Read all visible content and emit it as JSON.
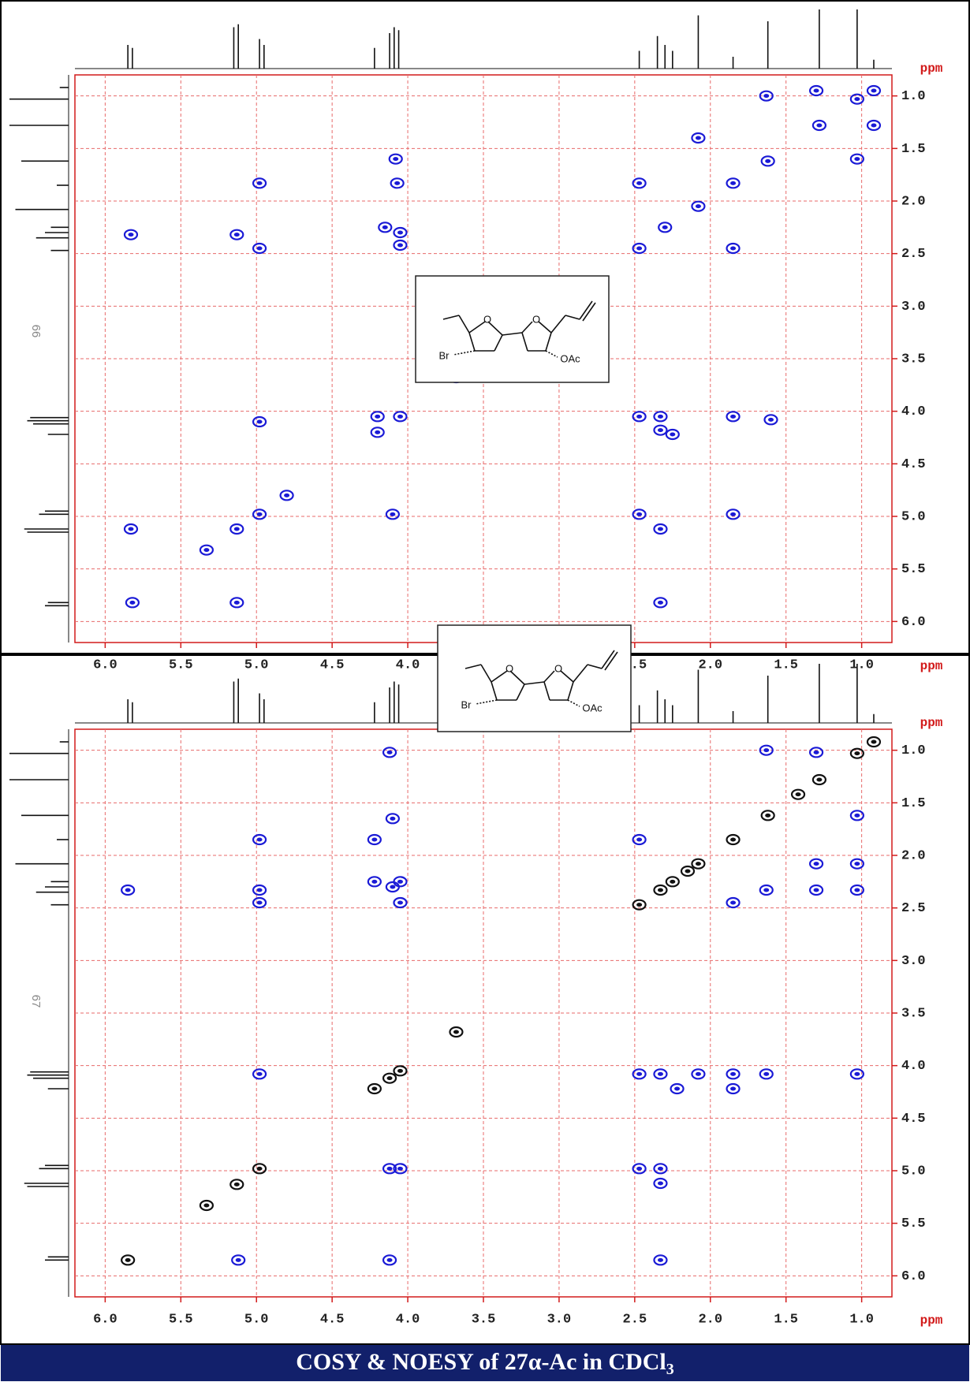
{
  "chart_data": [
    {
      "type": "scatter",
      "page_label": "66",
      "xlabel": "ppm",
      "ylabel": "ppm",
      "xlim": [
        6.2,
        0.8
      ],
      "ylim": [
        0.8,
        6.2
      ],
      "grid": true,
      "xticks": [
        {
          "value": 6,
          "label": "6.0"
        },
        5.5,
        {
          "value": 5,
          "label": "5.0"
        },
        4.5,
        {
          "value": 4,
          "label": "4.0"
        },
        3.5,
        {
          "value": 3,
          "label": "3.0"
        },
        2.5,
        {
          "value": 2,
          "label": "2.0"
        },
        1.5,
        {
          "value": 1,
          "label": "1.0"
        }
      ],
      "yticks": [
        {
          "value": 1,
          "label": "1.0"
        },
        1.5,
        {
          "value": 2,
          "label": "2.0"
        },
        2.5,
        {
          "value": 3,
          "label": "3.0"
        },
        3.5,
        {
          "value": 4,
          "label": "4.0"
        },
        4.5,
        {
          "value": 5,
          "label": "5.0"
        },
        5.5,
        {
          "value": 6,
          "label": "6.0"
        }
      ],
      "structure_labels": [
        "O",
        "O",
        "Br",
        "OAc"
      ],
      "projection": {
        "x": [
          5.85,
          5.82,
          5.15,
          5.12,
          4.98,
          4.95,
          4.22,
          4.12,
          4.09,
          4.06,
          2.47,
          2.35,
          2.3,
          2.25,
          2.08,
          1.85,
          1.62,
          1.28,
          1.03,
          0.92
        ],
        "values": [
          0.4,
          0.35,
          0.7,
          0.75,
          0.5,
          0.4,
          0.35,
          0.6,
          0.7,
          0.65,
          0.3,
          0.55,
          0.4,
          0.3,
          0.9,
          0.2,
          0.8,
          1.0,
          1.0,
          0.15
        ],
        "ylim": [
          0,
          1
        ]
      },
      "series": [
        {
          "color": "#1a1ad6",
          "x": [
            5.82,
            5.33,
            5.13,
            4.98,
            4.8,
            2.3,
            2.08,
            1.62,
            1.28,
            1.03,
            0.92,
            5.83,
            5.83,
            5.13,
            5.13,
            4.98,
            4.98,
            4.98,
            4.08,
            4.07,
            4.15,
            4.05,
            4.05,
            4.2,
            4.05,
            4.2,
            4.1,
            2.47,
            2.47,
            2.47,
            2.47,
            2.33,
            2.33,
            2.25,
            2.33,
            2.33,
            1.85,
            1.85,
            1.85,
            1.85,
            1.63,
            1.6,
            1.3,
            1.03,
            0.92,
            2.08,
            3.68
          ],
          "values": [
            5.82,
            5.32,
            5.12,
            4.98,
            4.8,
            2.25,
            2.05,
            1.62,
            1.28,
            1.03,
            0.95,
            2.32,
            5.12,
            2.32,
            5.82,
            1.83,
            2.45,
            4.1,
            1.6,
            1.83,
            2.25,
            2.3,
            2.42,
            4.2,
            4.05,
            4.05,
            4.98,
            1.83,
            2.45,
            4.05,
            4.98,
            4.05,
            4.18,
            4.22,
            5.12,
            5.82,
            1.83,
            2.45,
            4.05,
            4.98,
            1.0,
            4.08,
            0.95,
            1.6,
            1.28,
            1.4,
            3.68
          ]
        }
      ]
    },
    {
      "type": "scatter",
      "page_label": "67",
      "xlabel": "ppm",
      "ylabel": "ppm",
      "xlim": [
        6.2,
        0.8
      ],
      "ylim": [
        0.8,
        6.2
      ],
      "grid": true,
      "xticks": [
        {
          "value": 6,
          "label": "6.0"
        },
        5.5,
        {
          "value": 5,
          "label": "5.0"
        },
        4.5,
        {
          "value": 4,
          "label": "4.0"
        },
        3.5,
        {
          "value": 3,
          "label": "3.0"
        },
        2.5,
        {
          "value": 2,
          "label": "2.0"
        },
        1.5,
        {
          "value": 1,
          "label": "1.0"
        }
      ],
      "yticks": [
        {
          "value": 1,
          "label": "1.0"
        },
        1.5,
        {
          "value": 2,
          "label": "2.0"
        },
        2.5,
        {
          "value": 3,
          "label": "3.0"
        },
        3.5,
        {
          "value": 4,
          "label": "4.0"
        },
        4.5,
        {
          "value": 5,
          "label": "5.0"
        },
        5.5,
        {
          "value": 6,
          "label": "6.0"
        }
      ],
      "structure_labels": [
        "O",
        "O",
        "Br",
        "OAc"
      ],
      "projection": {
        "x": [
          5.85,
          5.82,
          5.15,
          5.12,
          4.98,
          4.95,
          4.22,
          4.12,
          4.09,
          4.06,
          2.47,
          2.35,
          2.3,
          2.25,
          2.08,
          1.85,
          1.62,
          1.28,
          1.03,
          0.92
        ],
        "values": [
          0.4,
          0.35,
          0.7,
          0.75,
          0.5,
          0.4,
          0.35,
          0.6,
          0.7,
          0.65,
          0.3,
          0.55,
          0.4,
          0.3,
          0.9,
          0.2,
          0.8,
          1.0,
          1.0,
          0.15
        ],
        "ylim": [
          0,
          1
        ]
      },
      "series": [
        {
          "color": "#1a1ad6",
          "x": [
            5.85,
            5.12,
            4.98,
            4.98,
            4.98,
            4.98,
            4.12,
            4.1,
            4.22,
            4.22,
            4.1,
            4.05,
            4.05,
            4.12,
            4.05,
            4.12,
            2.47,
            2.47,
            2.47,
            2.33,
            2.33,
            2.33,
            2.33,
            2.22,
            2.08,
            1.85,
            1.85,
            1.85,
            1.63,
            1.63,
            1.3,
            1.3,
            1.03,
            1.03,
            1.03,
            1.03,
            1.63,
            1.3
          ],
          "values": [
            2.33,
            5.85,
            1.85,
            2.33,
            2.45,
            4.08,
            1.02,
            1.65,
            1.85,
            2.25,
            2.3,
            2.25,
            2.45,
            4.98,
            4.98,
            5.85,
            1.85,
            4.08,
            4.98,
            4.08,
            4.98,
            5.12,
            5.85,
            4.22,
            4.08,
            2.45,
            4.08,
            4.22,
            4.08,
            2.33,
            2.08,
            2.33,
            2.08,
            2.33,
            1.62,
            4.08,
            1.0,
            1.02
          ]
        },
        {
          "color": "#111111",
          "x": [
            5.85,
            5.33,
            5.13,
            4.98,
            4.22,
            4.12,
            4.05,
            3.68,
            2.47,
            2.33,
            2.25,
            2.15,
            2.08,
            1.85,
            1.62,
            1.42,
            1.28,
            1.03,
            0.92
          ],
          "values": [
            5.85,
            5.33,
            5.13,
            4.98,
            4.22,
            4.12,
            4.05,
            3.68,
            2.47,
            2.33,
            2.25,
            2.15,
            2.08,
            1.85,
            1.62,
            1.42,
            1.28,
            1.03,
            0.92
          ]
        }
      ]
    }
  ],
  "caption": {
    "text": "COSY & NOESY of 27α-Ac in CDCl",
    "subscript": "3"
  }
}
